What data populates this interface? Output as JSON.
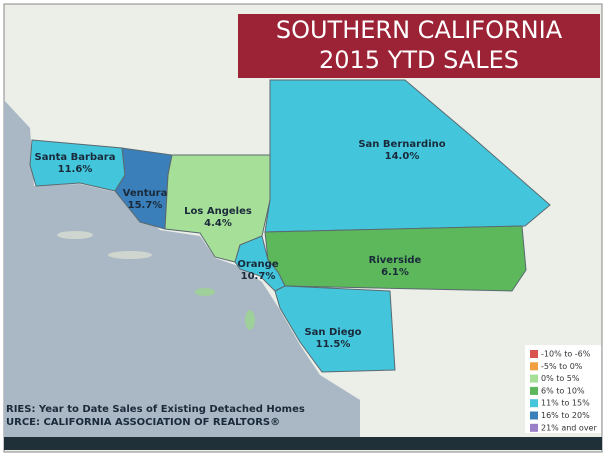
{
  "title": [
    "SOUTHERN CALIFORNIA",
    "2015 YTD SALES"
  ],
  "counties": [
    {
      "name": "Santa Barbara",
      "value": 11.6,
      "value_label": "11.6%",
      "color": "#43c6dc"
    },
    {
      "name": "Ventura",
      "value": 15.7,
      "value_label": "15.7%",
      "color": "#3b7fba"
    },
    {
      "name": "Los Angeles",
      "value": 4.4,
      "value_label": "4.4%",
      "color": "#a6df98"
    },
    {
      "name": "San Bernardino",
      "value": 14.0,
      "value_label": "14.0%",
      "color": "#43c6dc"
    },
    {
      "name": "Riverside",
      "value": 6.1,
      "value_label": "6.1%",
      "color": "#5cb85a"
    },
    {
      "name": "Orange",
      "value": 10.7,
      "value_label": "10.7%",
      "color": "#43c6dc"
    },
    {
      "name": "San Diego",
      "value": 11.5,
      "value_label": "11.5%",
      "color": "#43c6dc"
    }
  ],
  "legend": [
    {
      "label": "-10% to -6%",
      "color": "#d9534f"
    },
    {
      "label": "-5% to 0%",
      "color": "#f0a040"
    },
    {
      "label": "0% to 5%",
      "color": "#a6df98"
    },
    {
      "label": "6% to 10%",
      "color": "#5cb85a"
    },
    {
      "label": "11% to 15%",
      "color": "#43c6dc"
    },
    {
      "label": "16% to 20%",
      "color": "#3b7fba"
    },
    {
      "label": "21% and over",
      "color": "#9b7fc8"
    }
  ],
  "footer": [
    "RIES: Year to Date Sales of Existing Detached Homes",
    "URCE:  CALIFORNIA ASSOCIATION OF REALTORS®"
  ]
}
